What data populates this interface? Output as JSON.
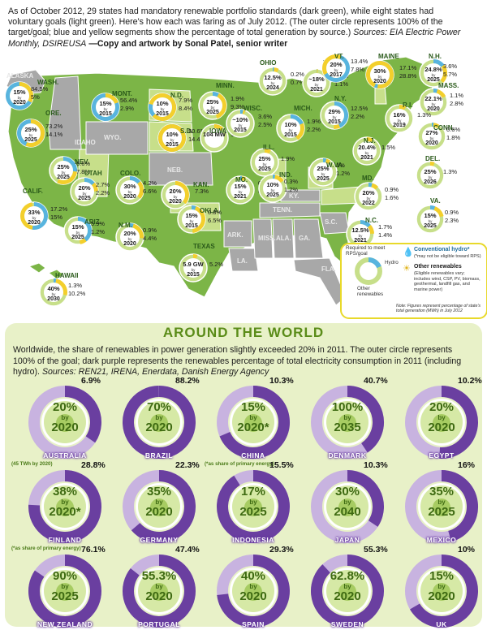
{
  "intro": {
    "text": "As of October 2012, 29 states had mandatory renewable portfolio standards (dark green), while eight states had voluntary goals (light green). Here's how each was faring as of July 2012. (The outer circle represents 100% of the target/goal; blue and yellow segments show the percentage of total generation by source.)",
    "sources": "Sources: EIA Electric Power Monthly, DSIREUSA",
    "credit": "—Copy and artwork by Sonal Patel, senior writer"
  },
  "colors": {
    "mandatory": "#6fae3a",
    "voluntary": "#c7df8a",
    "none": "#a8a8a8",
    "hydro": "#58b4de",
    "other": "#f3cf2c",
    "world_panel": "#e8f1c8",
    "world_dark": "#6a3fa0",
    "world_light": "#c8b3e0"
  },
  "map_labels": {
    "gray": [
      "IDAHO",
      "WYO.",
      "NEB.",
      "ARK.",
      "MISS.",
      "ALA.",
      "GA.",
      "S.C.",
      "TENN.",
      "LA.",
      "FLA.",
      "KY."
    ],
    "other": [
      "ALASKA"
    ]
  },
  "states": [
    {
      "name": "WASH.",
      "goal": "15%",
      "year": "2020",
      "hydro": "84.5%",
      "other": "5%"
    },
    {
      "name": "ORE.",
      "goal": "25%",
      "year": "2025",
      "hydro": "73.2%",
      "other": "14.1%"
    },
    {
      "name": "CALIF.",
      "goal": "33%",
      "year": "2020",
      "hydro": "17.2%",
      "other": "15%"
    },
    {
      "name": "NEV.",
      "goal": "25%",
      "year": "2025",
      "hydro": "6.6%",
      "other": "7.8%"
    },
    {
      "name": "UTAH",
      "goal": "20%",
      "year": "2025",
      "hydro": "2.7%",
      "other": "2.2%"
    },
    {
      "name": "ARIZ.",
      "goal": "15%",
      "year": "2025",
      "hydro": "5.9%",
      "other": "1.2%"
    },
    {
      "name": "MONT.",
      "goal": "15%",
      "year": "2015",
      "hydro": "56.4%",
      "other": "2.9%"
    },
    {
      "name": "COLO.",
      "goal": "30%",
      "year": "2020",
      "hydro": "4.2%",
      "other": "6.6%"
    },
    {
      "name": "N.M.",
      "goal": "20%",
      "year": "2020",
      "hydro": "0.9%",
      "other": "4.4%"
    },
    {
      "name": "N.D.",
      "goal": "10%",
      "year": "2015",
      "hydro": "7.9%",
      "other": "8.4%"
    },
    {
      "name": "S.D.",
      "goal": "10%",
      "year": "2015",
      "hydro": "50.6%",
      "other": "14.4%"
    },
    {
      "name": "KAN.",
      "goal": "20%",
      "year": "2020",
      "hydro": "",
      "other": "7.3%"
    },
    {
      "name": "OKLA.",
      "goal": "15%",
      "year": "2015",
      "hydro": "0.8%",
      "other": "6.5%"
    },
    {
      "name": "TEXAS",
      "goal": "5.9 GW",
      "year": "2015",
      "hydro": "",
      "other": "5.2%"
    },
    {
      "name": "MINN.",
      "goal": "25%",
      "year": "2025",
      "hydro": "1.9%",
      "other": "9.3%"
    },
    {
      "name": "IOWA",
      "goal": "104 MW",
      "year": "",
      "hydro": "",
      "other": "11.4%"
    },
    {
      "name": "MO.",
      "goal": "15%",
      "year": "2021",
      "hydro": "0.3%",
      "other": "0.7%"
    },
    {
      "name": "WISC.",
      "goal": "~10%",
      "year": "2015",
      "hydro": "3.6%",
      "other": "2.5%"
    },
    {
      "name": "ILL.",
      "goal": "25%",
      "year": "2025",
      "hydro": "",
      "other": "1.9%"
    },
    {
      "name": "MICH.",
      "goal": "10%",
      "year": "2015",
      "hydro": "1.9%",
      "other": "2.2%"
    },
    {
      "name": "IND.",
      "goal": "10%",
      "year": "2025",
      "hydro": "0.3%",
      "other": "1.2%"
    },
    {
      "name": "OHIO",
      "goal": "12.5%",
      "year": "2024",
      "hydro": "0.2%",
      "other": "0.7%"
    },
    {
      "name": "W.VA.",
      "goal": "25%",
      "year": "2025",
      "hydro": "1%",
      "other": "1.2%"
    },
    {
      "name": "PA.",
      "goal": "~18%",
      "year": "2021",
      "hydro": "0.4%",
      "other": "1.1%"
    },
    {
      "name": "N.Y.",
      "goal": "29%",
      "year": "2015",
      "hydro": "12.5%",
      "other": "2.2%"
    },
    {
      "name": "VT.",
      "goal": "20%",
      "year": "2017",
      "hydro": "13.4%",
      "other": "7.8%"
    },
    {
      "name": "MAINE",
      "goal": "30%",
      "year": "2020",
      "hydro": "17.1%",
      "other": "28.8%"
    },
    {
      "name": "N.H.",
      "goal": "24.8%",
      "year": "2025",
      "hydro": "3.6%",
      "other": "5.7%"
    },
    {
      "name": "MASS.",
      "goal": "22.1%",
      "year": "2020",
      "hydro": "1.1%",
      "other": "2.8%"
    },
    {
      "name": "R.I.",
      "goal": "16%",
      "year": "2019",
      "hydro": "",
      "other": "1.3%"
    },
    {
      "name": "CONN.",
      "goal": "27%",
      "year": "2020",
      "hydro": "0.6%",
      "other": "1.8%"
    },
    {
      "name": "N.J.",
      "goal": "20.4%",
      "year": "2021",
      "hydro": "",
      "other": "1.5%"
    },
    {
      "name": "DEL.",
      "goal": "25%",
      "year": "2026",
      "hydro": "",
      "other": "1.3%"
    },
    {
      "name": "MD.",
      "goal": "20%",
      "year": "2022",
      "hydro": "0.9%",
      "other": "1.6%"
    },
    {
      "name": "VA.",
      "goal": "15%",
      "year": "2025",
      "hydro": "0.9%",
      "other": "2.3%"
    },
    {
      "name": "N.C.",
      "goal": "12.5%",
      "year": "2021",
      "hydro": "1.7%",
      "other": "1.4%"
    },
    {
      "name": "HAWAII",
      "goal": "40%",
      "year": "2030",
      "hydro": "1.3%",
      "other": "10.2%"
    }
  ],
  "legend": {
    "required": "Required to meet RPS/goal",
    "hydro": "Hydro",
    "other": "Other renewables",
    "hydro_title": "Conventional hydro*",
    "hydro_note": "(*may not be eligible toward RPS)",
    "other_title": "Other renewables",
    "other_note": "(Eligible renewables vary; includes wind, CSP, PV, biomass, geothermal, landfill gas, and marine power)",
    "footnote": "Note: Figures represent percentage of state's total generation (MWh) in July 2012"
  },
  "world": {
    "title": "AROUND THE WORLD",
    "text": "Worldwide, the share of renewables in power generation slightly exceeded 20% in 2011. The outer circle represents 100% of the goal; dark purple represents the renewables percentage of total electricity consumption in 2011 (including hydro).",
    "sources": "Sources: REN21, IRENA, Enerdata, Danish Energy Agency",
    "countries": [
      {
        "name": "AUSTRALIA",
        "share": "6.9%",
        "share_value": 6.9,
        "goal": "20%",
        "goal_value": 20,
        "year": "2020",
        "note": "(45 TWh by 2020)"
      },
      {
        "name": "BRAZIL",
        "share": "88.2%",
        "share_value": 88.2,
        "goal": "70%",
        "goal_value": 70,
        "year": "2020",
        "note": ""
      },
      {
        "name": "CHINA",
        "share": "10.3%",
        "share_value": 10.3,
        "goal": "15%",
        "goal_value": 15,
        "year": "2020*",
        "note": "(*as share of primary energy)"
      },
      {
        "name": "DENMARK",
        "share": "40.7%",
        "share_value": 40.7,
        "goal": "100%",
        "goal_value": 100,
        "year": "2035",
        "note": ""
      },
      {
        "name": "EGYPT",
        "share": "10.2%",
        "share_value": 10.2,
        "goal": "20%",
        "goal_value": 20,
        "year": "2020",
        "note": ""
      },
      {
        "name": "FINLAND",
        "share": "28.8%",
        "share_value": 28.8,
        "goal": "38%",
        "goal_value": 38,
        "year": "2020*",
        "note": "(*as share of primary energy)"
      },
      {
        "name": "GERMANY",
        "share": "22.3%",
        "share_value": 22.3,
        "goal": "35%",
        "goal_value": 35,
        "year": "2020",
        "note": ""
      },
      {
        "name": "INDONESIA",
        "share": "15.5%",
        "share_value": 15.5,
        "goal": "17%",
        "goal_value": 17,
        "year": "2025",
        "note": ""
      },
      {
        "name": "JAPAN",
        "share": "10.3%",
        "share_value": 10.3,
        "goal": "30%",
        "goal_value": 30,
        "year": "2040",
        "note": ""
      },
      {
        "name": "MEXICO",
        "share": "16%",
        "share_value": 16,
        "goal": "35%",
        "goal_value": 35,
        "year": "2025",
        "note": ""
      },
      {
        "name": "NEW ZEALAND",
        "share": "76.1%",
        "share_value": 76.1,
        "goal": "90%",
        "goal_value": 90,
        "year": "2025",
        "note": ""
      },
      {
        "name": "PORTUGAL",
        "share": "47.4%",
        "share_value": 47.4,
        "goal": "55.3%",
        "goal_value": 55.3,
        "year": "2020",
        "note": ""
      },
      {
        "name": "SPAIN",
        "share": "29.3%",
        "share_value": 29.3,
        "goal": "40%",
        "goal_value": 40,
        "year": "2020",
        "note": ""
      },
      {
        "name": "SWEDEN",
        "share": "55.3%",
        "share_value": 55.3,
        "goal": "62.8%",
        "goal_value": 62.8,
        "year": "2020",
        "note": ""
      },
      {
        "name": "UK",
        "share": "10%",
        "share_value": 10,
        "goal": "15%",
        "goal_value": 15,
        "year": "2020",
        "note": ""
      }
    ],
    "by": "by"
  }
}
